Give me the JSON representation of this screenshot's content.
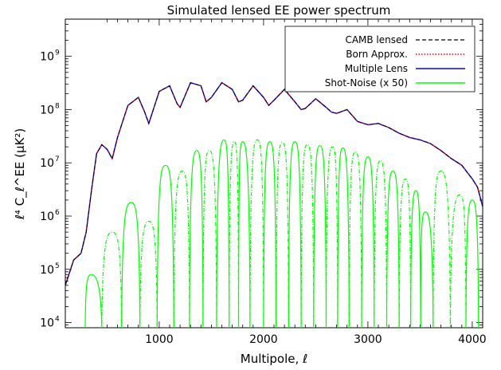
{
  "chart_data": {
    "type": "line",
    "title": "Simulated lensed EE power spectrum",
    "xlabel": "Multipole, ℓ",
    "ylabel": "ℓ⁴ C_ℓ^EE (μK²)",
    "xlim": [
      100,
      4100
    ],
    "ylim": [
      8000,
      5000000000
    ],
    "yscale": "log",
    "x_ticks": [
      1000,
      2000,
      3000,
      4000
    ],
    "x_tick_labels": [
      "1000",
      "2000",
      "3000",
      "4000"
    ],
    "y_ticks": [
      10000,
      100000,
      1000000,
      10000000,
      100000000,
      1000000000
    ],
    "y_tick_labels": [
      "10",
      "10",
      "10",
      "10",
      "10",
      "10"
    ],
    "y_tick_exponents": [
      "4",
      "5",
      "6",
      "7",
      "8",
      "9"
    ],
    "legend_position": "top-right",
    "series": [
      {
        "name": "CAMB lensed",
        "color": "#000000",
        "dash": "dashed"
      },
      {
        "name": "Born Approx.",
        "color": "#ff0000",
        "dash": "dotted"
      },
      {
        "name": "Multiple Lens",
        "color": "#0000ff",
        "dash": "solid"
      },
      {
        "name": "Shot-Noise (x 50)",
        "color": "#00ff00",
        "dash": "solid"
      }
    ],
    "spectrum": {
      "x": [
        100,
        180,
        250,
        300,
        350,
        400,
        450,
        500,
        550,
        600,
        700,
        800,
        860,
        900,
        1000,
        1100,
        1170,
        1200,
        1300,
        1400,
        1450,
        1500,
        1600,
        1700,
        1760,
        1800,
        1900,
        2000,
        2050,
        2100,
        2200,
        2300,
        2360,
        2400,
        2500,
        2600,
        2650,
        2700,
        2800,
        2900,
        3000,
        3100,
        3200,
        3300,
        3400,
        3500,
        3600,
        3700,
        3800,
        3900,
        4000,
        4050,
        4100
      ],
      "y": [
        50000,
        150000,
        200000,
        500000,
        3000000,
        15000000,
        22000000,
        18000000,
        12000000,
        30000000,
        120000000,
        170000000,
        90000000,
        55000000,
        220000000,
        280000000,
        130000000,
        110000000,
        320000000,
        280000000,
        140000000,
        170000000,
        320000000,
        240000000,
        140000000,
        150000000,
        280000000,
        170000000,
        120000000,
        150000000,
        240000000,
        140000000,
        100000000,
        105000000,
        160000000,
        110000000,
        90000000,
        85000000,
        100000000,
        60000000,
        52000000,
        55000000,
        46000000,
        36000000,
        30000000,
        27000000,
        23000000,
        17000000,
        12000000,
        9000000,
        5000000,
        3500000,
        1500000
      ]
    },
    "shot_noise": {
      "peak_x": [
        350,
        550,
        730,
        900,
        1060,
        1220,
        1360,
        1480,
        1620,
        1720,
        1800,
        1940,
        2060,
        2180,
        2300,
        2420,
        2540,
        2660,
        2760,
        2880,
        3000,
        3120,
        3240,
        3360,
        3460,
        3550,
        3700,
        3880,
        4000
      ],
      "peak_y": [
        80000,
        500000,
        1800000,
        800000,
        9000000,
        7000000,
        17000000,
        17000000,
        27000000,
        25000000,
        25000000,
        27000000,
        25000000,
        24000000,
        25000000,
        22000000,
        21000000,
        20000000,
        19000000,
        16000000,
        13000000,
        11000000,
        7000000,
        5000000,
        3000000,
        1200000,
        7000000,
        2500000,
        2000000
      ]
    }
  }
}
